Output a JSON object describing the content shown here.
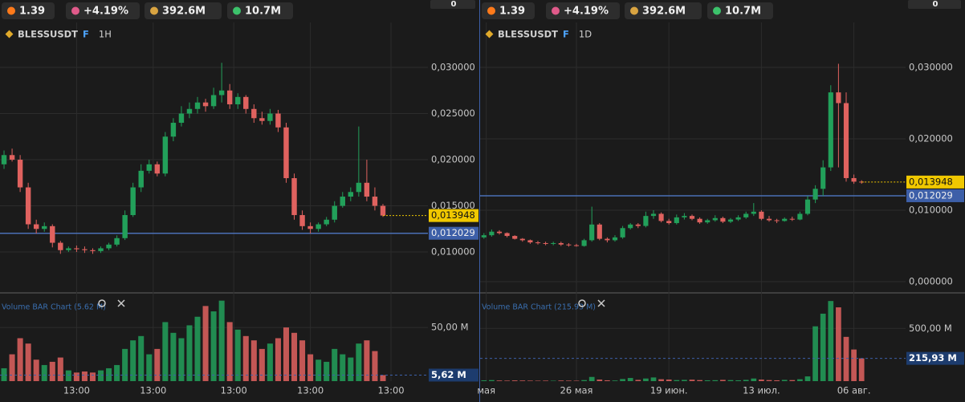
{
  "stats": [
    "1.39",
    "+4.19%",
    "392.6M",
    "10.7M"
  ],
  "chart_data": [
    {
      "type": "candlestick",
      "symbol": "BLESSUSDT",
      "contract": "F",
      "interval": "1H",
      "badge": "0",
      "ylim": [
        0.00557,
        0.03487
      ],
      "yticks": [
        {
          "value": 0.03,
          "label": "0,030000"
        },
        {
          "value": 0.025,
          "label": "0,025000"
        },
        {
          "value": 0.02,
          "label": "0,020000"
        },
        {
          "value": 0.015,
          "label": "0,015000"
        },
        {
          "value": 0.01,
          "label": "0,010000"
        }
      ],
      "xticks": [
        {
          "value": 9,
          "label": "13:00"
        },
        {
          "value": 18.5,
          "label": "13:00"
        },
        {
          "value": 28.5,
          "label": "13:00"
        },
        {
          "value": 38,
          "label": "13:00"
        },
        {
          "value": 48,
          "label": "13:00"
        }
      ],
      "open": [
        0.0195,
        0.0205,
        0.02,
        0.017,
        0.013,
        0.0125,
        0.0128,
        0.011,
        0.0102,
        0.0104,
        0.0103,
        0.0102,
        0.0101,
        0.0104,
        0.0108,
        0.0115,
        0.014,
        0.017,
        0.0188,
        0.0195,
        0.0185,
        0.0225,
        0.024,
        0.025,
        0.0255,
        0.0262,
        0.0258,
        0.027,
        0.0275,
        0.026,
        0.0268,
        0.0255,
        0.0245,
        0.0242,
        0.025,
        0.0235,
        0.018,
        0.014,
        0.0128,
        0.0125,
        0.013,
        0.0135,
        0.015,
        0.016,
        0.0165,
        0.0175,
        0.016,
        0.015
      ],
      "high": [
        0.021,
        0.0212,
        0.0205,
        0.0175,
        0.0135,
        0.0132,
        0.013,
        0.0112,
        0.0106,
        0.0107,
        0.0106,
        0.0104,
        0.0106,
        0.011,
        0.0118,
        0.0145,
        0.0175,
        0.0195,
        0.02,
        0.0198,
        0.023,
        0.0245,
        0.0258,
        0.0262,
        0.0268,
        0.0266,
        0.0278,
        0.0305,
        0.0282,
        0.0272,
        0.027,
        0.026,
        0.0252,
        0.0255,
        0.0254,
        0.024,
        0.0185,
        0.0145,
        0.0132,
        0.0132,
        0.0138,
        0.0155,
        0.0165,
        0.017,
        0.0236,
        0.02,
        0.017,
        0.0152
      ],
      "low": [
        0.019,
        0.0198,
        0.0165,
        0.0125,
        0.012,
        0.0122,
        0.0105,
        0.0098,
        0.01,
        0.01,
        0.0099,
        0.0098,
        0.0099,
        0.0102,
        0.0106,
        0.0113,
        0.0138,
        0.0165,
        0.0185,
        0.0182,
        0.0182,
        0.022,
        0.0236,
        0.0245,
        0.025,
        0.0252,
        0.0255,
        0.0262,
        0.0255,
        0.0255,
        0.025,
        0.024,
        0.0238,
        0.0238,
        0.023,
        0.0175,
        0.0135,
        0.0124,
        0.012,
        0.0122,
        0.0128,
        0.0132,
        0.0148,
        0.0155,
        0.016,
        0.0155,
        0.0145,
        0.0138
      ],
      "close": [
        0.0205,
        0.02,
        0.017,
        0.013,
        0.0125,
        0.0128,
        0.011,
        0.0102,
        0.0104,
        0.0103,
        0.0102,
        0.0101,
        0.0104,
        0.0108,
        0.0115,
        0.014,
        0.017,
        0.0188,
        0.0195,
        0.0185,
        0.0225,
        0.024,
        0.025,
        0.0255,
        0.0262,
        0.0258,
        0.027,
        0.0275,
        0.026,
        0.0268,
        0.0255,
        0.0245,
        0.0242,
        0.025,
        0.0235,
        0.018,
        0.014,
        0.0128,
        0.0125,
        0.013,
        0.0135,
        0.015,
        0.016,
        0.0165,
        0.0175,
        0.016,
        0.015,
        0.013948
      ],
      "up_color": "#22a05a",
      "down_color": "#e0625f",
      "last_price_label": "0,013948",
      "level": {
        "value": 0.012029,
        "label": "0,012029"
      },
      "volume_title": "Volume BAR Chart (5.62 M)",
      "vol_ylim": [
        0,
        77
      ],
      "vol_yticks": [
        {
          "value": 50,
          "label": "50,00 M"
        }
      ],
      "volumes": [
        12,
        25,
        40,
        35,
        20,
        15,
        18,
        22,
        10,
        8,
        9,
        8,
        10,
        12,
        15,
        30,
        38,
        42,
        25,
        30,
        55,
        45,
        40,
        52,
        60,
        70,
        65,
        75,
        55,
        48,
        42,
        38,
        30,
        35,
        40,
        50,
        45,
        38,
        25,
        20,
        18,
        30,
        25,
        22,
        35,
        38,
        28,
        5.62
      ],
      "volume_current_label": "5,62 M"
    },
    {
      "type": "candlestick",
      "symbol": "BLESSUSDT",
      "contract": "F",
      "interval": "1D",
      "badge": "0",
      "ylim": [
        -0.00157,
        0.03629
      ],
      "yticks": [
        {
          "value": 0.03,
          "label": "0,030000"
        },
        {
          "value": 0.02,
          "label": "0,020000"
        },
        {
          "value": 0.01,
          "label": "0,010000"
        },
        {
          "value": 0,
          "label": "0,000000"
        }
      ],
      "xticks": [
        {
          "value": 0.3,
          "label": "мая"
        },
        {
          "value": 12,
          "label": "26 мая"
        },
        {
          "value": 24,
          "label": "19 июн."
        },
        {
          "value": 36,
          "label": "13 июл."
        },
        {
          "value": 48,
          "label": "06 авг."
        }
      ],
      "open": [
        0.0062,
        0.0065,
        0.007,
        0.0068,
        0.0064,
        0.006,
        0.0058,
        0.0055,
        0.0054,
        0.0053,
        0.0054,
        0.0052,
        0.0051,
        0.005,
        0.0058,
        0.008,
        0.006,
        0.0058,
        0.0062,
        0.0075,
        0.008,
        0.0078,
        0.0092,
        0.0095,
        0.0085,
        0.0082,
        0.009,
        0.0092,
        0.0088,
        0.0083,
        0.0086,
        0.0089,
        0.0084,
        0.0087,
        0.009,
        0.0095,
        0.0098,
        0.0088,
        0.0086,
        0.0085,
        0.0088,
        0.0087,
        0.0095,
        0.0115,
        0.013,
        0.016,
        0.0265,
        0.025,
        0.0145,
        0.014
      ],
      "high": [
        0.0068,
        0.0073,
        0.0072,
        0.0069,
        0.0065,
        0.0061,
        0.0059,
        0.0057,
        0.0056,
        0.0056,
        0.0056,
        0.0054,
        0.0053,
        0.006,
        0.0105,
        0.0082,
        0.0062,
        0.0065,
        0.0078,
        0.0082,
        0.0082,
        0.0098,
        0.01,
        0.0097,
        0.0088,
        0.0094,
        0.0096,
        0.0094,
        0.009,
        0.0088,
        0.0093,
        0.0091,
        0.0089,
        0.0093,
        0.0098,
        0.011,
        0.01,
        0.0092,
        0.0088,
        0.009,
        0.0091,
        0.0098,
        0.012,
        0.0135,
        0.017,
        0.0275,
        0.0305,
        0.0265,
        0.015,
        0.0142
      ],
      "low": [
        0.006,
        0.0063,
        0.0066,
        0.0062,
        0.0059,
        0.0056,
        0.0053,
        0.0052,
        0.0051,
        0.0051,
        0.005,
        0.0049,
        0.0049,
        0.0049,
        0.0056,
        0.0058,
        0.0055,
        0.0056,
        0.006,
        0.0073,
        0.0075,
        0.0076,
        0.0088,
        0.0083,
        0.008,
        0.008,
        0.0087,
        0.0086,
        0.0081,
        0.0081,
        0.0084,
        0.0082,
        0.0082,
        0.0085,
        0.0088,
        0.0092,
        0.0086,
        0.0084,
        0.0082,
        0.0084,
        0.0085,
        0.0086,
        0.0093,
        0.011,
        0.012,
        0.0155,
        0.016,
        0.014,
        0.0137,
        0.0137
      ],
      "close": [
        0.0065,
        0.007,
        0.0068,
        0.0064,
        0.006,
        0.0058,
        0.0055,
        0.0054,
        0.0053,
        0.0054,
        0.0052,
        0.0051,
        0.005,
        0.0058,
        0.008,
        0.006,
        0.0058,
        0.0062,
        0.0075,
        0.008,
        0.0078,
        0.0092,
        0.0095,
        0.0085,
        0.0082,
        0.009,
        0.0092,
        0.0088,
        0.0083,
        0.0086,
        0.0089,
        0.0084,
        0.0087,
        0.009,
        0.0095,
        0.0098,
        0.0088,
        0.0086,
        0.0085,
        0.0088,
        0.0087,
        0.0095,
        0.0115,
        0.013,
        0.016,
        0.0265,
        0.025,
        0.0145,
        0.014,
        0.013948
      ],
      "up_color": "#22a05a",
      "down_color": "#e0625f",
      "last_price_label": "0,013948",
      "level": {
        "value": 0.012029,
        "label": "0,012029"
      },
      "volume_title": "Volume BAR Chart (215.93 M)",
      "vol_ylim": [
        0,
        784
      ],
      "vol_yticks": [
        {
          "value": 500,
          "label": "500,00 M"
        }
      ],
      "volumes": [
        8,
        10,
        6,
        5,
        7,
        6,
        5,
        4,
        5,
        4,
        6,
        5,
        4,
        10,
        40,
        15,
        8,
        6,
        20,
        30,
        12,
        25,
        35,
        18,
        15,
        10,
        12,
        14,
        10,
        8,
        9,
        12,
        10,
        8,
        12,
        25,
        15,
        10,
        8,
        12,
        10,
        18,
        45,
        520,
        640,
        760,
        700,
        420,
        300,
        215.93
      ],
      "volume_current_label": "215,93 M"
    }
  ]
}
